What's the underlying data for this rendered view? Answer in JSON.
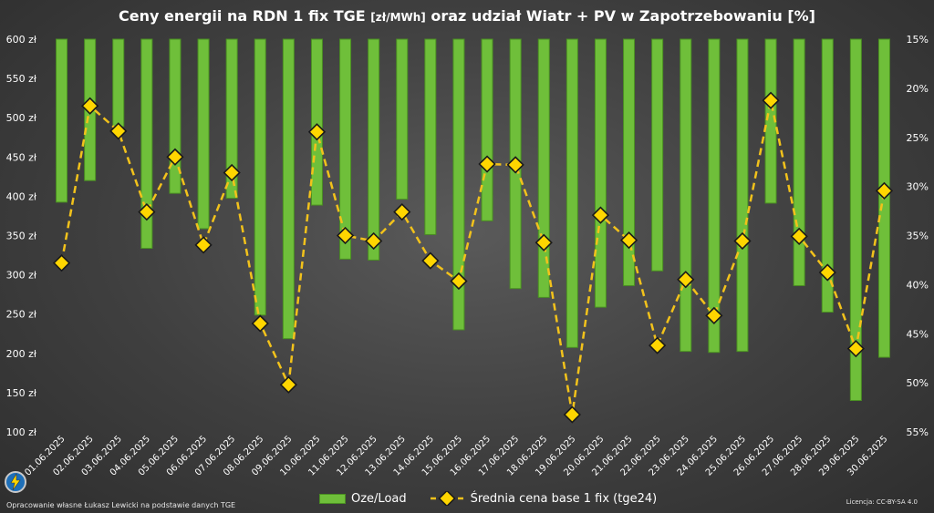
{
  "page": {
    "credit": "Opracowanie własne Łukasz Lewicki na podstawie danych TGE",
    "license": "Licencja: CC-BY-SA 4.0"
  },
  "chart_data": {
    "type": "bar+line",
    "title_main": "Ceny energii na RDN 1 fix TGE",
    "title_unit": "[zł/MWh]",
    "title_rest": "oraz udział Wiatr + PV w Zapotrzebowaniu [%]",
    "categories": [
      "01.06.2025",
      "02.06.2025",
      "03.06.2025",
      "04.06.2025",
      "05.06.2025",
      "06.06.2025",
      "07.06.2025",
      "08.06.2025",
      "09.06.2025",
      "10.06.2025",
      "11.06.2025",
      "12.06.2025",
      "13.06.2025",
      "14.06.2025",
      "15.06.2025",
      "16.06.2025",
      "17.06.2025",
      "18.06.2025",
      "19.06.2025",
      "20.06.2025",
      "21.06.2025",
      "22.06.2025",
      "23.06.2025",
      "24.06.2025",
      "25.06.2025",
      "26.06.2025",
      "27.06.2025",
      "28.06.2025",
      "29.06.2025",
      "30.06.2025"
    ],
    "y_left": {
      "min": 100,
      "max": 600,
      "step": 50,
      "tick_labels": [
        "100 zł",
        "150 zł",
        "200 zł",
        "250 zł",
        "300 zł",
        "350 zł",
        "400 zł",
        "450 zł",
        "500 zł",
        "550 zł",
        "600 zł"
      ]
    },
    "y_right": {
      "min": 15,
      "max": 55,
      "step": 5,
      "reversed": true,
      "tick_labels": [
        "15%",
        "20%",
        "25%",
        "30%",
        "35%",
        "40%",
        "45%",
        "50%",
        "55%"
      ]
    },
    "series": [
      {
        "name": "Oze/Load",
        "type": "bar",
        "axis": "right",
        "color": "#6fbf3a",
        "values": [
          31.6,
          29.4,
          23.9,
          36.3,
          30.7,
          34.3,
          31.2,
          43.1,
          45.5,
          31.9,
          37.4,
          37.5,
          31.3,
          34.9,
          44.6,
          33.5,
          40.4,
          41.3,
          46.4,
          42.3,
          40.1,
          38.6,
          46.8,
          46.9,
          46.8,
          31.7,
          40.1,
          42.8,
          51.8,
          47.4
        ]
      },
      {
        "name": "Średnia cena base 1 fix (tge24)",
        "type": "line",
        "axis": "left",
        "color": "#f2c21b",
        "marker_color": "#ffd600",
        "values": [
          315,
          515,
          483,
          380,
          450,
          338,
          430,
          238,
          160,
          482,
          350,
          343,
          380,
          318,
          292,
          441,
          440,
          341,
          122,
          376,
          344,
          210,
          294,
          248,
          343,
          522,
          349,
          303,
          206,
          407
        ]
      }
    ],
    "grid": false,
    "legend_position": "bottom"
  }
}
